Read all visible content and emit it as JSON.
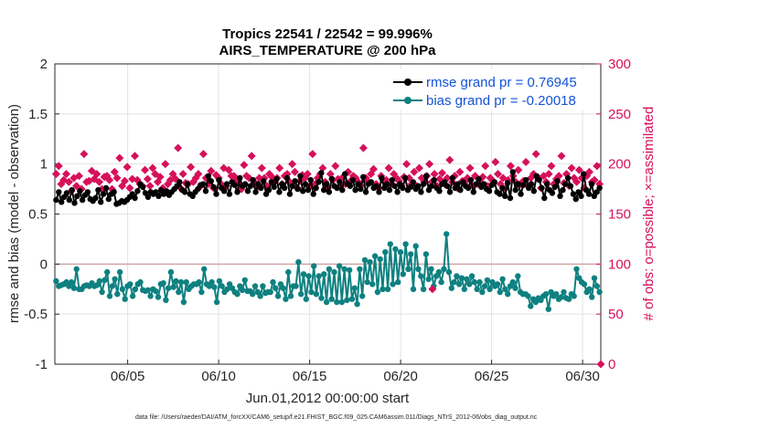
{
  "chart_data": {
    "type": "line",
    "title": "Tropics 22541 / 22542 = 99.996%",
    "subtitle": "AIRS_TEMPERATURE @ 200 hPa",
    "xlabel": "Jun.01,2012 00:00:00 start",
    "ylabel": "rmse and bias (model - observation)",
    "ylabel_right": "# of obs: o=possible; ×=assimilated",
    "footer": "data file: /Users/raeder/DAI/ATM_forcXX/CAM6_setup/f.e21.FHIST_BGC.f09_025.CAM6assim.011/Diags_NTrS_2012-06/obs_diag_output.nc",
    "xlim": [
      1,
      31
    ],
    "ylim": [
      -1,
      2
    ],
    "ylim_right": [
      0,
      300
    ],
    "x_tick_labels": [
      "06/05",
      "06/10",
      "06/15",
      "06/20",
      "06/25",
      "06/30"
    ],
    "y_tick_labels": [
      "-1",
      "-0.5",
      "0",
      "0.5",
      "1",
      "1.5",
      "2"
    ],
    "y_right_tick_labels": [
      "0",
      "50",
      "100",
      "150",
      "200",
      "250",
      "300"
    ],
    "legend": [
      "rmse grand pr = 0.76945",
      "bias grand pr = -0.20018"
    ],
    "series": [
      {
        "name": "rmse",
        "color": "#000000",
        "values": [
          0.64,
          0.72,
          0.62,
          0.67,
          0.71,
          0.64,
          0.74,
          0.61,
          0.68,
          0.73,
          0.64,
          0.69,
          0.72,
          0.65,
          0.63,
          0.66,
          0.74,
          0.62,
          0.7,
          0.76,
          0.65,
          0.7,
          0.72,
          0.6,
          0.61,
          0.63,
          0.62,
          0.64,
          0.67,
          0.7,
          0.66,
          0.73,
          0.8,
          0.77,
          0.71,
          0.67,
          0.72,
          0.7,
          0.72,
          0.68,
          0.74,
          0.7,
          0.73,
          0.69,
          0.72,
          0.75,
          0.78,
          0.82,
          0.74,
          0.72,
          0.8,
          0.7,
          0.68,
          0.72,
          0.75,
          0.79,
          0.8,
          0.73,
          0.88,
          0.83,
          0.77,
          0.7,
          0.84,
          0.76,
          0.73,
          0.8,
          0.7,
          0.82,
          0.79,
          0.72,
          0.86,
          0.78,
          0.8,
          0.73,
          0.78,
          0.84,
          0.72,
          0.8,
          0.76,
          0.83,
          0.7,
          0.74,
          0.82,
          0.77,
          0.85,
          0.72,
          0.8,
          0.76,
          0.86,
          0.7,
          0.78,
          0.83,
          0.75,
          0.88,
          0.73,
          0.8,
          0.74,
          0.84,
          0.7,
          0.76,
          0.82,
          0.91,
          0.74,
          0.8,
          0.72,
          0.85,
          0.78,
          0.76,
          0.82,
          0.74,
          0.9,
          0.8,
          0.78,
          0.84,
          0.74,
          0.8,
          0.75,
          0.87,
          0.72,
          0.8,
          0.82,
          0.76,
          0.78,
          0.72,
          0.86,
          0.76,
          0.8,
          0.74,
          0.84,
          0.78,
          0.72,
          0.8,
          0.76,
          0.86,
          0.74,
          0.77,
          0.82,
          0.75,
          0.78,
          0.72,
          0.8,
          0.88,
          0.74,
          0.78,
          0.84,
          0.76,
          0.73,
          0.8,
          0.82,
          0.78,
          0.72,
          0.86,
          0.76,
          0.8,
          0.74,
          0.82,
          0.78,
          0.76,
          0.84,
          0.72,
          0.8,
          0.85,
          0.77,
          0.8,
          0.75,
          0.73,
          0.79,
          0.82,
          0.72,
          0.7,
          0.76,
          0.68,
          0.81,
          0.66,
          0.92,
          0.74,
          0.8,
          0.7,
          0.79,
          0.84,
          0.76,
          0.8,
          0.73,
          0.88,
          0.84,
          0.76,
          0.66,
          0.8,
          0.74,
          0.71,
          0.77,
          0.83,
          0.68,
          0.74,
          0.8,
          0.86,
          0.78,
          0.7,
          0.65,
          0.72,
          0.68,
          0.9,
          0.74,
          0.7,
          0.8,
          0.68,
          0.72,
          0.76
        ]
      },
      {
        "name": "bias",
        "color": "#0f8080",
        "values": [
          -0.17,
          -0.22,
          -0.21,
          -0.2,
          -0.18,
          -0.22,
          -0.18,
          -0.24,
          -0.05,
          -0.25,
          -0.25,
          -0.22,
          -0.21,
          -0.22,
          -0.19,
          -0.22,
          -0.21,
          -0.17,
          -0.28,
          -0.16,
          -0.08,
          -0.32,
          -0.22,
          -0.15,
          -0.3,
          -0.08,
          -0.25,
          -0.35,
          -0.22,
          -0.2,
          -0.32,
          -0.25,
          -0.2,
          -0.18,
          -0.26,
          -0.27,
          -0.26,
          -0.32,
          -0.25,
          -0.27,
          -0.33,
          -0.2,
          -0.19,
          -0.36,
          -0.24,
          -0.08,
          -0.23,
          -0.17,
          -0.28,
          -0.18,
          -0.38,
          -0.18,
          -0.25,
          -0.22,
          -0.2,
          -0.2,
          -0.18,
          -0.28,
          -0.05,
          -0.2,
          -0.22,
          -0.18,
          -0.23,
          -0.38,
          -0.17,
          -0.22,
          -0.28,
          -0.25,
          -0.2,
          -0.24,
          -0.28,
          -0.3,
          -0.22,
          -0.26,
          -0.16,
          -0.27,
          -0.27,
          -0.3,
          -0.22,
          -0.28,
          -0.32,
          -0.22,
          -0.29,
          -0.28,
          -0.28,
          -0.18,
          -0.24,
          -0.32,
          -0.2,
          -0.24,
          -0.35,
          -0.08,
          -0.32,
          -0.22,
          -0.22,
          0.02,
          -0.3,
          -0.1,
          -0.35,
          -0.12,
          -0.28,
          -0.02,
          -0.3,
          -0.12,
          -0.34,
          -0.1,
          -0.38,
          -0.05,
          -0.35,
          -0.08,
          -0.38,
          -0.02,
          -0.38,
          -0.05,
          -0.36,
          -0.06,
          -0.35,
          -0.24,
          -0.4,
          -0.05,
          -0.32,
          0.04,
          -0.18,
          0.02,
          -0.2,
          0.08,
          -0.28,
          0.05,
          -0.25,
          0.12,
          -0.25,
          0.2,
          -0.2,
          0.15,
          -0.18,
          0.12,
          -0.1,
          0.2,
          -0.05,
          0.1,
          -0.25,
          0.18,
          -0.05,
          -0.12,
          -0.25,
          0.1,
          -0.15,
          -0.05,
          -0.22,
          -0.12,
          -0.08,
          -0.18,
          -0.05,
          0.3,
          -0.08,
          -0.24,
          -0.18,
          -0.12,
          -0.2,
          -0.14,
          -0.25,
          -0.15,
          -0.2,
          -0.12,
          -0.18,
          -0.25,
          -0.18,
          -0.28,
          -0.22,
          -0.16,
          -0.25,
          -0.18,
          -0.22,
          -0.2,
          -0.28,
          -0.15,
          -0.25,
          -0.3,
          -0.22,
          -0.18,
          -0.24,
          -0.12,
          -0.28,
          -0.3,
          -0.3,
          -0.32,
          -0.42,
          -0.35,
          -0.38,
          -0.34,
          -0.36,
          -0.32,
          -0.3,
          -0.45,
          -0.28,
          -0.32,
          -0.3,
          -0.35,
          -0.33,
          -0.28,
          -0.34,
          -0.35,
          -0.3,
          -0.32,
          -0.05,
          -0.14,
          -0.18,
          -0.2,
          -0.28,
          -0.25,
          -0.33,
          -0.14,
          -0.22,
          -0.28
        ]
      },
      {
        "name": "obs possible",
        "axis": "right",
        "color": "#d6105a",
        "values": [
          190,
          198,
          180,
          184,
          190,
          182,
          173,
          186,
          178,
          188,
          175,
          210,
          182,
          183,
          193,
          185,
          190,
          182,
          175,
          187,
          188,
          184,
          175,
          192,
          186,
          206,
          178,
          183,
          197,
          176,
          185,
          208,
          184,
          180,
          178,
          194,
          185,
          178,
          196,
          190,
          182,
          187,
          176,
          200,
          180,
          184,
          190,
          185,
          216,
          176,
          190,
          181,
          180,
          197,
          182,
          186,
          190,
          178,
          210,
          186,
          180,
          193,
          176,
          189,
          186,
          180,
          196,
          178,
          194,
          188,
          188,
          183,
          180,
          175,
          199,
          188,
          186,
          208,
          182,
          177,
          186,
          196,
          186,
          178,
          190,
          187,
          182,
          186,
          196,
          180,
          188,
          190,
          182,
          200,
          192,
          176,
          183,
          189,
          186,
          190,
          178,
          210,
          180,
          186,
          190,
          196,
          182,
          176,
          190,
          184,
          198,
          185,
          178,
          187,
          180,
          192,
          183,
          188,
          186,
          182,
          178,
          216,
          186,
          182,
          190,
          195,
          180,
          176,
          188,
          183,
          184,
          196,
          180,
          190,
          186,
          183,
          178,
          187,
          200,
          186,
          180,
          192,
          178,
          196,
          186,
          182,
          188,
          200,
          182,
          190,
          178,
          185,
          191,
          180,
          186,
          204,
          182,
          188,
          176,
          192,
          183,
          182,
          186,
          196,
          178,
          188,
          180,
          182,
          187,
          198,
          178,
          186,
          183,
          202,
          190,
          180,
          186,
          176,
          184,
          198,
          188,
          182,
          194,
          180,
          183,
          202,
          178,
          186,
          190,
          210,
          186,
          176,
          188,
          182,
          190,
          198,
          180,
          185,
          188,
          208,
          181,
          190,
          178,
          196,
          186,
          182,
          194,
          186,
          176,
          188,
          192,
          182,
          184,
          198,
          180
        ]
      },
      {
        "name": "obs assimilated",
        "axis": "right",
        "color": "#d6105a",
        "points": [
          [
            21.75,
            75
          ],
          [
            31,
            0
          ]
        ]
      }
    ]
  }
}
